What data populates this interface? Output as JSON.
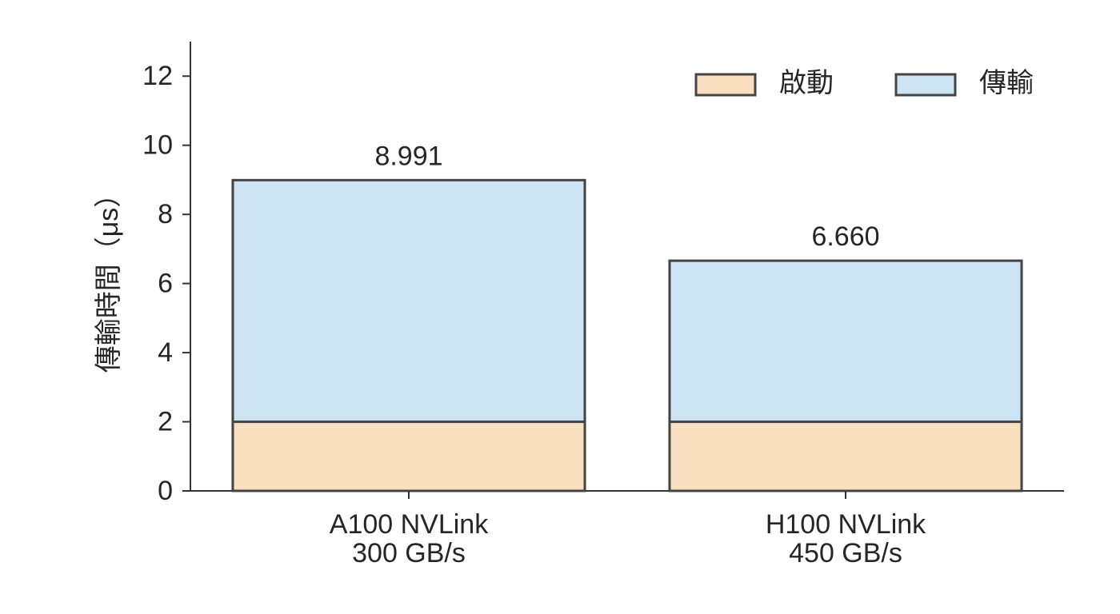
{
  "chart_data": {
    "type": "stacked-bar",
    "y_label": "傳輸時間（μs）",
    "categories": [
      [
        "A100 NVLink",
        "300 GB/s"
      ],
      [
        "H100 NVLink",
        "450 GB/s"
      ]
    ],
    "series": [
      {
        "name": "啟動",
        "color": "#f8dfc0",
        "values": [
          2,
          2
        ]
      },
      {
        "name": "傳輸",
        "color": "#cce3f3",
        "values": [
          6.991,
          4.66
        ]
      }
    ],
    "totals": [
      8.991,
      6.66
    ],
    "total_labels": [
      "8.991",
      "6.660"
    ],
    "edge_color": "#444444",
    "ylim": [
      0,
      13
    ],
    "yticks": [
      0,
      2,
      4,
      6,
      8,
      10,
      12
    ],
    "grid": false,
    "legend": "upper right"
  }
}
